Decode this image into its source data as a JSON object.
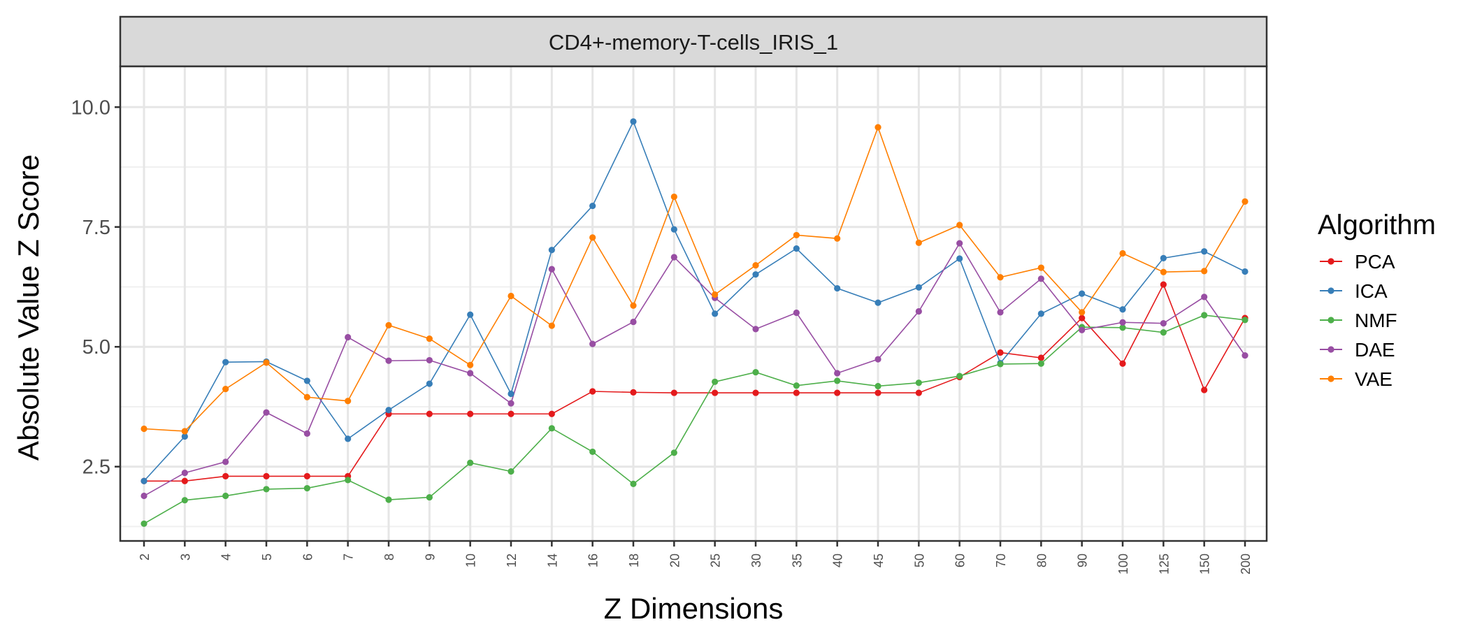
{
  "chart_data": {
    "type": "line",
    "title": "CD4+-memory-T-cells_IRIS_1",
    "xlabel": "Z Dimensions",
    "ylabel": "Absolute Value Z Score",
    "x": [
      "2",
      "3",
      "4",
      "5",
      "6",
      "7",
      "8",
      "9",
      "10",
      "12",
      "14",
      "16",
      "18",
      "20",
      "25",
      "30",
      "35",
      "40",
      "45",
      "50",
      "60",
      "70",
      "80",
      "90",
      "100",
      "125",
      "150",
      "200"
    ],
    "ylim": [
      0.95,
      10.85
    ],
    "yticks": [
      "2.5",
      "5.0",
      "7.5",
      "10.0"
    ],
    "yticks_values": [
      2.5,
      5.0,
      7.5,
      10.0
    ],
    "grid": true,
    "legend": {
      "title": "Algorithm",
      "position": "right"
    },
    "series": [
      {
        "name": "PCA",
        "color": "#e41a1c",
        "values": [
          2.2,
          2.2,
          2.3,
          2.3,
          2.3,
          2.3,
          3.6,
          3.6,
          3.6,
          3.6,
          3.6,
          4.07,
          4.05,
          4.04,
          4.04,
          4.04,
          4.04,
          4.04,
          4.04,
          4.04,
          4.37,
          4.88,
          4.77,
          5.6,
          4.65,
          6.3,
          4.1,
          5.6
        ]
      },
      {
        "name": "ICA",
        "color": "#377eb8",
        "values": [
          2.2,
          3.13,
          4.68,
          4.69,
          4.29,
          3.08,
          3.68,
          4.23,
          5.67,
          4.02,
          7.02,
          7.94,
          9.7,
          7.45,
          5.69,
          6.51,
          7.05,
          6.22,
          5.92,
          6.24,
          6.84,
          4.66,
          5.69,
          6.11,
          5.78,
          6.85,
          6.99,
          6.57
        ]
      },
      {
        "name": "NMF",
        "color": "#4daf4a",
        "values": [
          1.31,
          1.8,
          1.89,
          2.03,
          2.05,
          2.22,
          1.81,
          1.86,
          2.58,
          2.4,
          3.3,
          2.81,
          2.14,
          2.79,
          4.27,
          4.47,
          4.19,
          4.29,
          4.18,
          4.25,
          4.39,
          4.64,
          4.65,
          5.41,
          5.4,
          5.3,
          5.66,
          5.56
        ]
      },
      {
        "name": "DAE",
        "color": "#984ea3",
        "values": [
          1.89,
          2.37,
          2.6,
          3.63,
          3.19,
          5.2,
          4.71,
          4.72,
          4.45,
          3.82,
          6.62,
          5.06,
          5.52,
          6.87,
          6.02,
          5.37,
          5.71,
          4.45,
          4.74,
          5.74,
          7.16,
          5.72,
          6.42,
          5.35,
          5.51,
          5.49,
          6.04,
          4.82
        ]
      },
      {
        "name": "VAE",
        "color": "#ff7f00",
        "values": [
          3.29,
          3.24,
          4.12,
          4.67,
          3.95,
          3.87,
          5.45,
          5.17,
          4.62,
          6.06,
          5.44,
          7.28,
          5.86,
          8.13,
          6.09,
          6.7,
          7.33,
          7.26,
          9.58,
          7.17,
          7.54,
          6.45,
          6.65,
          5.72,
          6.95,
          6.56,
          6.58,
          8.03
        ]
      }
    ]
  }
}
